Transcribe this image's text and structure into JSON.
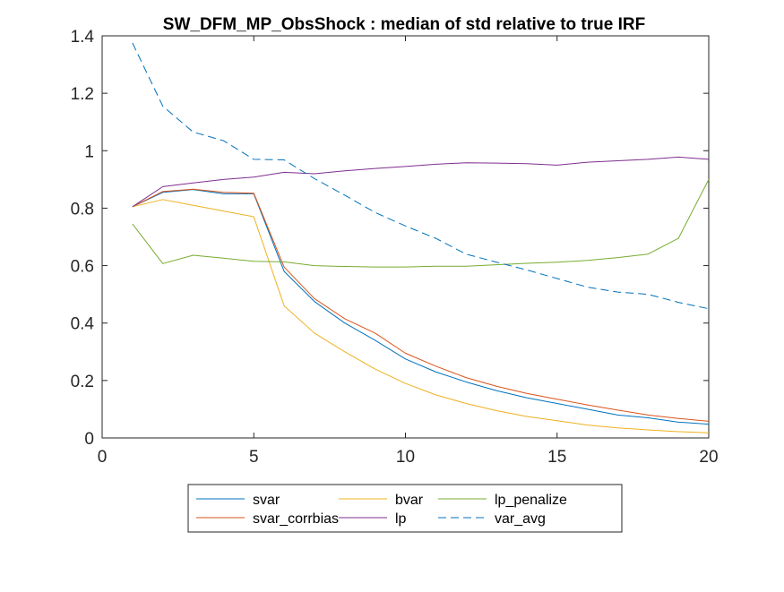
{
  "chart_data": {
    "type": "line",
    "title": "SW_DFM_MP_ObsShock : median of std relative to true IRF",
    "xlabel": "",
    "ylabel": "",
    "xlim": [
      0,
      20
    ],
    "ylim": [
      0,
      1.4
    ],
    "xticks": [
      0,
      5,
      10,
      15,
      20
    ],
    "xtick_labels": [
      "0",
      "5",
      "10",
      "15",
      "20"
    ],
    "yticks": [
      0,
      0.2,
      0.4,
      0.6,
      0.8,
      1,
      1.2,
      1.4
    ],
    "ytick_labels": [
      "0",
      "0.2",
      "0.4",
      "0.6",
      "0.8",
      "1",
      "1.2",
      "1.4"
    ],
    "grid": false,
    "legend_position": "bottom",
    "x": [
      1,
      2,
      3,
      4,
      5,
      6,
      7,
      8,
      9,
      10,
      11,
      12,
      13,
      14,
      15,
      16,
      17,
      18,
      19,
      20
    ],
    "series": [
      {
        "name": "svar",
        "color": "#0072BD",
        "dash": "solid",
        "values": [
          0.805,
          0.855,
          0.865,
          0.85,
          0.85,
          0.58,
          0.475,
          0.4,
          0.34,
          0.275,
          0.23,
          0.195,
          0.165,
          0.14,
          0.12,
          0.1,
          0.08,
          0.07,
          0.055,
          0.048
        ]
      },
      {
        "name": "svar_corrbias",
        "color": "#D95319",
        "dash": "solid",
        "values": [
          0.805,
          0.858,
          0.866,
          0.855,
          0.852,
          0.595,
          0.485,
          0.415,
          0.365,
          0.295,
          0.25,
          0.21,
          0.18,
          0.155,
          0.135,
          0.115,
          0.097,
          0.08,
          0.068,
          0.058
        ]
      },
      {
        "name": "bvar",
        "color": "#EDB120",
        "dash": "solid",
        "values": [
          0.805,
          0.83,
          0.81,
          0.79,
          0.77,
          0.46,
          0.365,
          0.3,
          0.24,
          0.19,
          0.15,
          0.12,
          0.095,
          0.075,
          0.06,
          0.045,
          0.035,
          0.028,
          0.022,
          0.018
        ]
      },
      {
        "name": "lp",
        "color": "#7E2F8E",
        "dash": "solid",
        "values": [
          0.805,
          0.875,
          0.888,
          0.9,
          0.908,
          0.925,
          0.92,
          0.93,
          0.938,
          0.945,
          0.953,
          0.958,
          0.957,
          0.955,
          0.95,
          0.96,
          0.965,
          0.97,
          0.978,
          0.97
        ]
      },
      {
        "name": "lp_penalize",
        "color": "#77AC30",
        "dash": "solid",
        "values": [
          0.745,
          0.607,
          0.636,
          0.626,
          0.615,
          0.613,
          0.6,
          0.597,
          0.595,
          0.595,
          0.598,
          0.598,
          0.603,
          0.608,
          0.612,
          0.618,
          0.628,
          0.64,
          0.695,
          0.9
        ]
      },
      {
        "name": "var_avg",
        "color": "#0072BD",
        "dash": "dashed",
        "values": [
          1.375,
          1.155,
          1.065,
          1.035,
          0.97,
          0.968,
          0.903,
          0.845,
          0.785,
          0.738,
          0.695,
          0.64,
          0.612,
          0.585,
          0.555,
          0.525,
          0.508,
          0.5,
          0.472,
          0.45
        ]
      }
    ],
    "legend_rows": [
      [
        "svar",
        "bvar",
        "lp_penalize"
      ],
      [
        "svar_corrbias",
        "lp",
        "var_avg"
      ]
    ]
  }
}
